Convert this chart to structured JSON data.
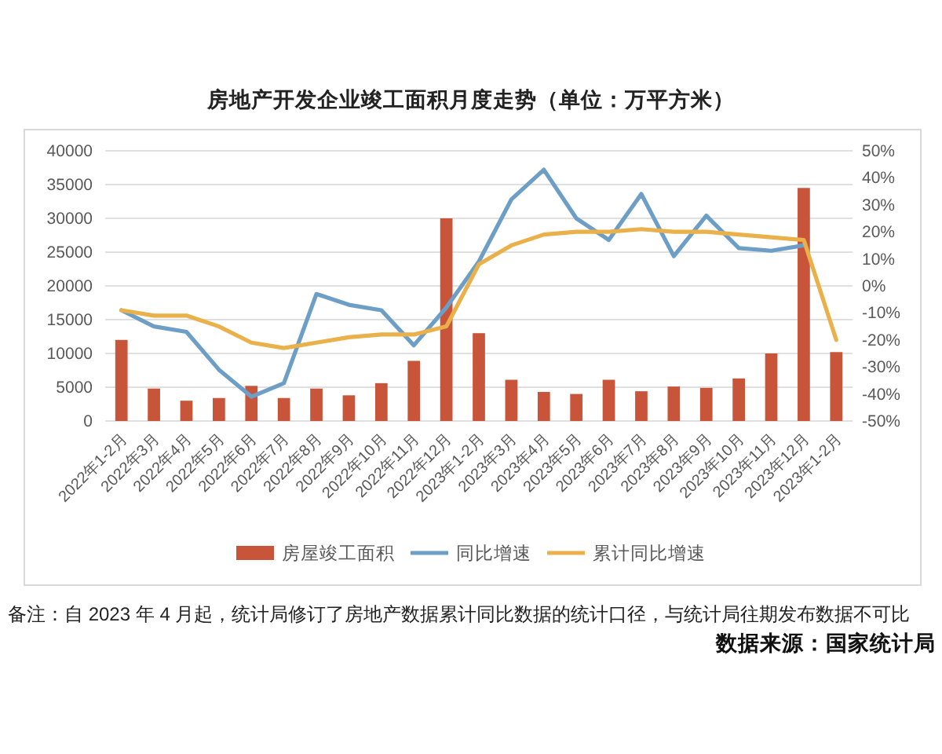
{
  "chart_data": {
    "type": "bar",
    "title": "房地产开发企业竣工面积月度走势（单位：万平方米）",
    "categories": [
      "2022年1-2月",
      "2022年3月",
      "2022年4月",
      "2022年5月",
      "2022年6月",
      "2022年7月",
      "2022年8月",
      "2022年9月",
      "2022年10月",
      "2022年11月",
      "2022年12月",
      "2023年1-2月",
      "2023年3月",
      "2023年4月",
      "2023年5月",
      "2023年6月",
      "2023年7月",
      "2023年8月",
      "2023年9月",
      "2023年10月",
      "2023年11月",
      "2023年12月",
      "2023年1-2月"
    ],
    "series": [
      {
        "name": "房屋竣工面积",
        "color": "#c8553a",
        "values": [
          12000,
          4800,
          3000,
          3400,
          5200,
          3400,
          4800,
          3800,
          5600,
          8900,
          30000,
          13000,
          6100,
          4300,
          4000,
          6100,
          4400,
          5100,
          4900,
          6300,
          10000,
          34500,
          10200
        ]
      },
      {
        "name": "同比增速",
        "type": "line",
        "axis": "y2",
        "color": "#6d9ec6",
        "values": [
          -9,
          -15,
          -17,
          -31,
          -41,
          -36,
          -3,
          -7,
          -9,
          -22,
          -8,
          9,
          32,
          43,
          25,
          17,
          34,
          11,
          26,
          14,
          13,
          15,
          null
        ]
      },
      {
        "name": "累计同比增速",
        "type": "line",
        "axis": "y2",
        "color": "#eab04a",
        "values": [
          -9,
          -11,
          -11,
          -15,
          -21,
          -23,
          -21,
          -19,
          -18,
          -18,
          -15,
          8,
          15,
          19,
          20,
          20,
          21,
          20,
          20,
          19,
          18,
          17,
          -20
        ]
      }
    ],
    "ylim": [
      0,
      40000
    ],
    "yticks": [
      0,
      5000,
      10000,
      15000,
      20000,
      25000,
      30000,
      35000,
      40000
    ],
    "y2lim": [
      -50,
      50
    ],
    "y2ticks": [
      {
        "value": -50,
        "label": "-50%"
      },
      {
        "value": -40,
        "label": "-40%"
      },
      {
        "value": -30,
        "label": "-30%"
      },
      {
        "value": -20,
        "label": "-20%"
      },
      {
        "value": -10,
        "label": "-10%"
      },
      {
        "value": 0,
        "label": "0%"
      },
      {
        "value": 10,
        "label": "10%"
      },
      {
        "value": 20,
        "label": "20%"
      },
      {
        "value": 30,
        "label": "30%"
      },
      {
        "value": 40,
        "label": "40%"
      },
      {
        "value": 50,
        "label": "50%"
      }
    ],
    "grid": "y",
    "legend": "bottom",
    "annotations": [
      "备注：自 2023 年 4 月起，统计局修订了房地产数据累计同比数据的统计口径，与统计局往期发布数据不可比",
      "数据来源：国家统计局"
    ]
  }
}
